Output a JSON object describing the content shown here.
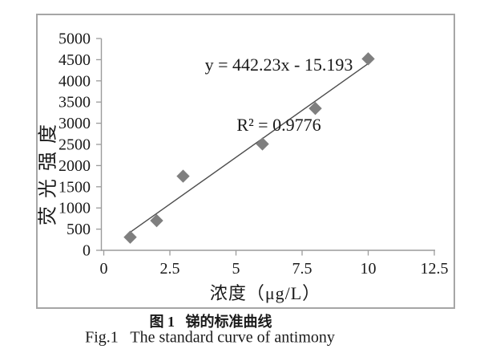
{
  "figure_captions": {
    "zh": "图 1   锑的标准曲线",
    "en": "Fig.1   The standard curve of antimony"
  },
  "chart_data": {
    "type": "scatter",
    "title": "",
    "xlabel": "浓度（μg/L）",
    "ylabel": "荧光强度",
    "xlim": [
      0,
      12.5
    ],
    "ylim": [
      0,
      5000
    ],
    "xticks": [
      "0",
      "2.5",
      "5",
      "7.5",
      "10",
      "12.5"
    ],
    "yticks": [
      "0",
      "500",
      "1000",
      "1500",
      "2000",
      "2500",
      "3000",
      "3500",
      "4000",
      "4500",
      "5000"
    ],
    "grid": false,
    "legend": "none",
    "series": [
      {
        "marker": "diamond",
        "points": [
          [
            1,
            310
          ],
          [
            2,
            700
          ],
          [
            3,
            1750
          ],
          [
            6,
            2510
          ],
          [
            8,
            3350
          ],
          [
            10,
            4520
          ]
        ]
      }
    ],
    "trendline": {
      "equation": "y = 442.23x - 15.193",
      "r2_label": "R² = 0.9776",
      "slope": 442.23,
      "intercept": -15.193,
      "x_range": [
        0.92,
        10.02
      ]
    },
    "colors": {
      "marker": "#7f7f7f",
      "trendline": "#4d4d4d",
      "axis": "#9b9b9b",
      "border": "#a6a6a6",
      "text": "#1a1a1a"
    }
  }
}
